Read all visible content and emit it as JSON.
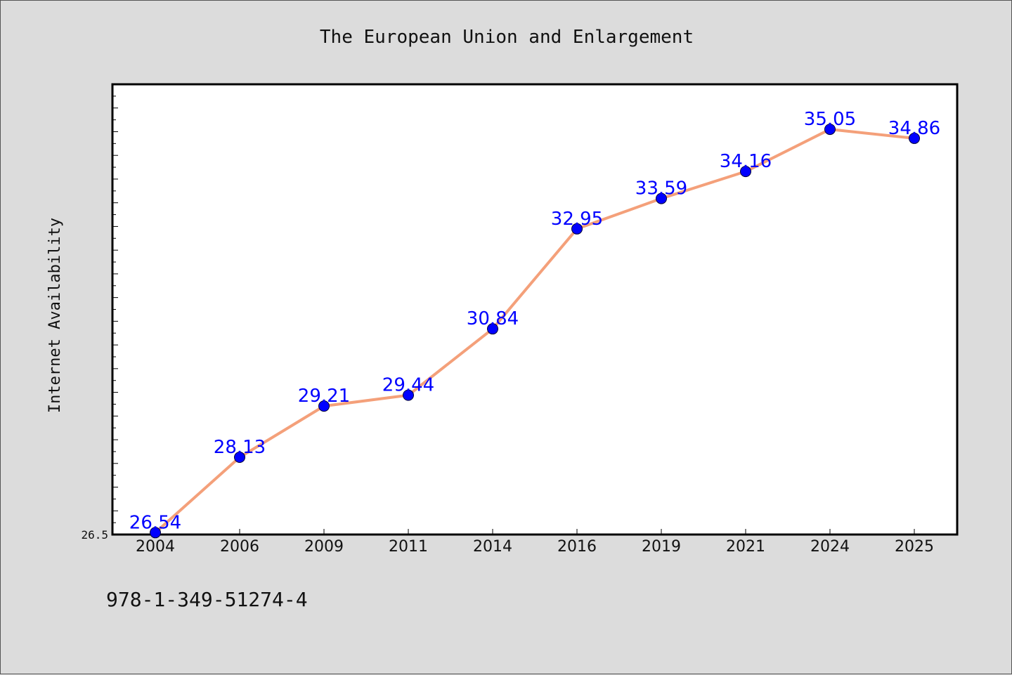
{
  "chart_data": {
    "type": "line",
    "title": "The European Union and Enlargement",
    "xlabel": "",
    "ylabel": "Internet Availability",
    "categories": [
      "2004",
      "2006",
      "2009",
      "2011",
      "2014",
      "2016",
      "2019",
      "2021",
      "2024",
      "2025"
    ],
    "series": [
      {
        "values": [
          26.54,
          28.13,
          29.21,
          29.44,
          30.84,
          32.95,
          33.59,
          34.16,
          35.05,
          34.86
        ],
        "line_color": "#f4a07a",
        "marker_color": "#0000ff",
        "label_color": "#0000ff"
      }
    ],
    "data_labels": [
      "26.54",
      "28.13",
      "29.21",
      "29.44",
      "30.84",
      "32.95",
      "33.59",
      "34.16",
      "35.05",
      "34.86"
    ],
    "yticks_labeled": [
      26.5
    ],
    "ytick_labels": [
      "26.5"
    ],
    "ylim": [
      26.5,
      36.0
    ],
    "grid": false,
    "legend": "none"
  },
  "footer": {
    "isbn": "978-1-349-51274-4"
  }
}
